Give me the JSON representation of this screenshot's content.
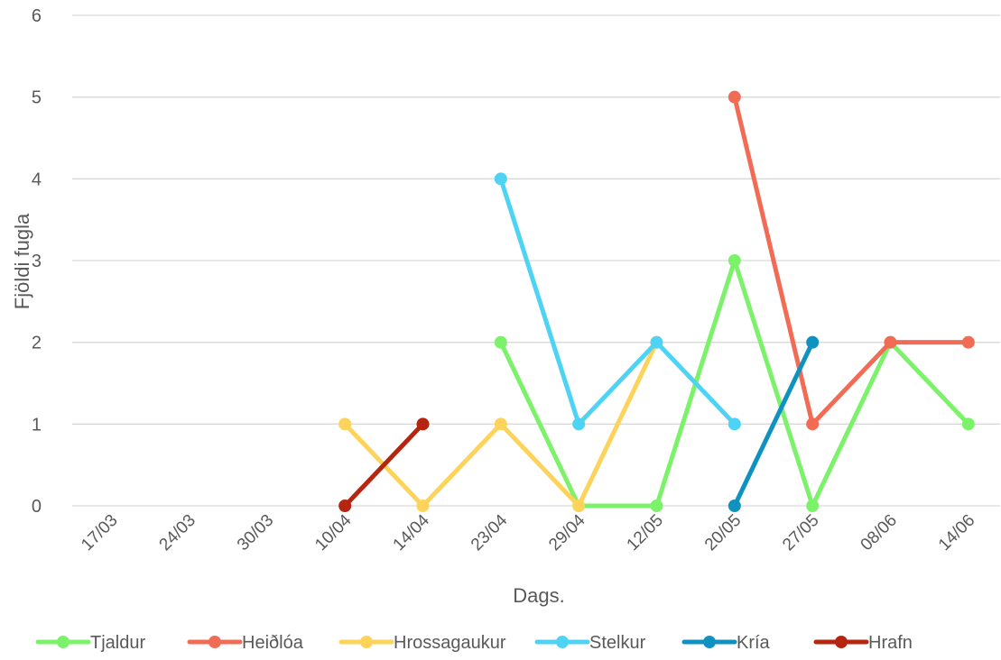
{
  "chart_data": {
    "type": "line",
    "xlabel": "Dags.",
    "ylabel": "Fjöldi fugla",
    "categories": [
      "17/03",
      "24/03",
      "30/03",
      "10/04",
      "14/04",
      "23/04",
      "29/04",
      "12/05",
      "20/05",
      "27/05",
      "08/06",
      "14/06"
    ],
    "ylim": [
      0,
      6
    ],
    "yticks": [
      "0",
      "1",
      "2",
      "3",
      "4",
      "5",
      "6"
    ],
    "grid": true,
    "legend_position": "bottom",
    "series": [
      {
        "name": "Tjaldur",
        "color": "#7cf26a",
        "values": [
          null,
          null,
          null,
          null,
          null,
          2,
          0,
          0,
          3,
          0,
          2,
          1
        ]
      },
      {
        "name": "Heiðlóa",
        "color": "#f26b55",
        "values": [
          null,
          null,
          null,
          null,
          null,
          null,
          null,
          null,
          5,
          1,
          2,
          2
        ]
      },
      {
        "name": "Hrossagaukur",
        "color": "#fdd35b",
        "values": [
          null,
          null,
          null,
          1,
          0,
          1,
          0,
          2,
          null,
          null,
          null,
          null
        ]
      },
      {
        "name": "Stelkur",
        "color": "#4fd3f5",
        "values": [
          null,
          null,
          null,
          null,
          null,
          4,
          1,
          2,
          1,
          null,
          null,
          null
        ]
      },
      {
        "name": "Kría",
        "color": "#1092c1",
        "values": [
          null,
          null,
          null,
          null,
          null,
          null,
          null,
          null,
          0,
          2,
          null,
          null
        ]
      },
      {
        "name": "Hrafn",
        "color": "#b5250f",
        "values": [
          null,
          null,
          null,
          0,
          1,
          null,
          null,
          null,
          null,
          null,
          null,
          null
        ]
      }
    ]
  }
}
